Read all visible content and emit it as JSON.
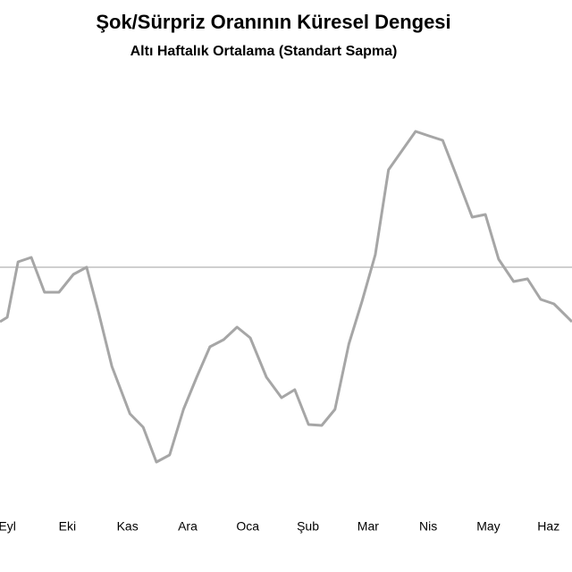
{
  "chart_data": {
    "type": "line",
    "title": "Şok/Sürpriz Oranının Küresel Dengesi",
    "subtitle": "Altı Haftalık Ortalama (Standart Sapma)",
    "x": [
      -0.12,
      0,
      0.18,
      0.4,
      0.62,
      0.86,
      1.1,
      1.32,
      1.52,
      1.74,
      2.04,
      2.26,
      2.48,
      2.7,
      2.93,
      3.15,
      3.37,
      3.6,
      3.82,
      4.04,
      4.31,
      4.56,
      4.78,
      5.01,
      5.23,
      5.45,
      5.68,
      5.9,
      6.12,
      6.34,
      6.57,
      6.79,
      7.01,
      7.24,
      7.46,
      7.73,
      7.95,
      8.17,
      8.42,
      8.65,
      8.87,
      9.09,
      9.39
    ],
    "series": [
      {
        "color": "#a6a6a6",
        "values": [
          -0.61,
          -0.56,
          0.06,
          0.11,
          -0.28,
          -0.28,
          -0.08,
          0,
          -0.51,
          -1.11,
          -1.64,
          -1.79,
          -2.18,
          -2.1,
          -1.59,
          -1.23,
          -0.89,
          -0.81,
          -0.67,
          -0.79,
          -1.23,
          -1.46,
          -1.37,
          -1.76,
          -1.77,
          -1.59,
          -0.86,
          -0.38,
          0.14,
          1.09,
          1.31,
          1.52,
          1.47,
          1.42,
          1.04,
          0.56,
          0.59,
          0.09,
          -0.16,
          -0.13,
          -0.36,
          -0.41,
          -0.61
        ]
      }
    ],
    "xlim": [
      -0.12,
      9.39
    ],
    "xticks": [
      {
        "value": 0,
        "label": "Eyl"
      },
      {
        "value": 1,
        "label": "Eki"
      },
      {
        "value": 2,
        "label": "Kas"
      },
      {
        "value": 3,
        "label": "Ara"
      },
      {
        "value": 4,
        "label": "Oca"
      },
      {
        "value": 5,
        "label": "Şub"
      },
      {
        "value": 6,
        "label": "Mar"
      },
      {
        "value": 7,
        "label": "Nis"
      },
      {
        "value": 8,
        "label": "May"
      },
      {
        "value": 9,
        "label": "Haz"
      }
    ],
    "ylim": [
      -2.61,
      2.29
    ],
    "yticks": [
      0
    ],
    "grid": true
  }
}
